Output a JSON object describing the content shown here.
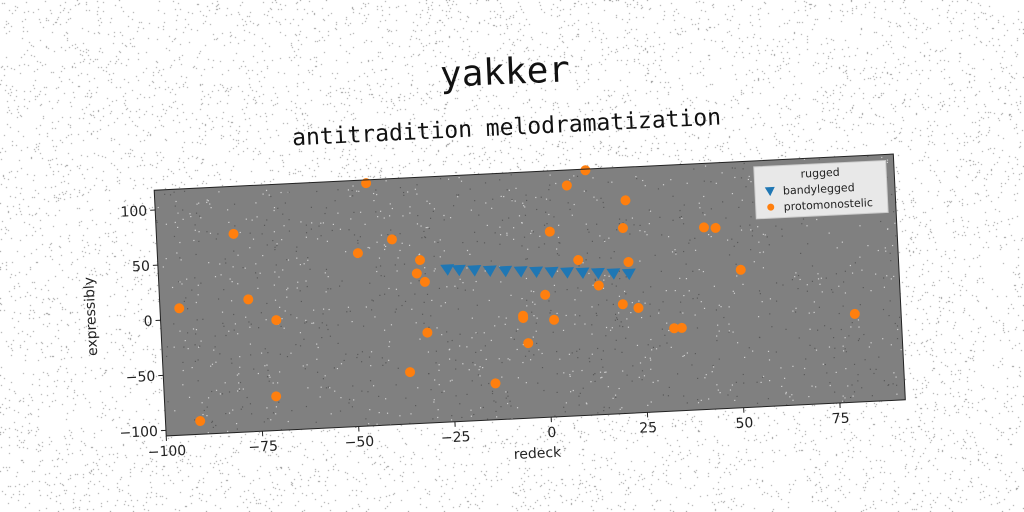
{
  "suptitle": "yakker",
  "chart_data": {
    "type": "scatter",
    "title": "antitradition melodramatization",
    "xlabel": "redeck",
    "ylabel": "expressibly",
    "xlim": [
      -100,
      92
    ],
    "ylim": [
      -105,
      118
    ],
    "xticks": [
      -100,
      -75,
      -50,
      -25,
      0,
      25,
      50,
      75
    ],
    "yticks": [
      -100,
      -50,
      0,
      50,
      100
    ],
    "xtick_labels": [
      "−100",
      "−75",
      "−50",
      "−25",
      "0",
      "25",
      "50",
      "75"
    ],
    "ytick_labels": [
      "−100",
      "−50",
      "0",
      "50",
      "100"
    ],
    "grid": false,
    "legend": {
      "title": "rugged",
      "placement": "top-right",
      "entries": [
        "bandylegged",
        "protomonostelic"
      ]
    },
    "series": [
      {
        "name": "bandylegged",
        "marker": "triangle-down",
        "color": "#1f77b4",
        "x": [
          -25,
          -22,
          -18,
          -14,
          -10,
          -6,
          -2,
          2,
          6,
          10,
          14,
          18,
          22
        ],
        "y": [
          33,
          32,
          31,
          30,
          29,
          28,
          27,
          26,
          25,
          24,
          23,
          22,
          21
        ]
      },
      {
        "name": "protomonostelic",
        "marker": "circle",
        "color": "#ff7f0e",
        "points": [
          [
            -45,
            115
          ],
          [
            -80,
            75
          ],
          [
            -95,
            10
          ],
          [
            -77,
            15
          ],
          [
            -70,
            -5
          ],
          [
            -48,
            52
          ],
          [
            -39,
            63
          ],
          [
            -32,
            43
          ],
          [
            -33,
            31
          ],
          [
            -31,
            23
          ],
          [
            -31,
            -23
          ],
          [
            -36,
            -58
          ],
          [
            -14,
            -72
          ],
          [
            -71,
            -74
          ],
          [
            -91,
            -93
          ],
          [
            -6,
            -14
          ],
          [
            -6,
            -12
          ],
          [
            -5,
            -37
          ],
          [
            0,
            6
          ],
          [
            2,
            -17
          ],
          [
            2,
            63
          ],
          [
            7,
            104
          ],
          [
            12,
            117
          ],
          [
            9,
            36
          ],
          [
            14,
            12
          ],
          [
            20,
            -6
          ],
          [
            22,
            32
          ],
          [
            21,
            63
          ],
          [
            22,
            88
          ],
          [
            24,
            -10
          ],
          [
            33,
            -30
          ],
          [
            35,
            -30
          ],
          [
            42,
            60
          ],
          [
            45,
            59
          ],
          [
            51,
            20
          ],
          [
            80,
            -25
          ]
        ]
      }
    ]
  }
}
